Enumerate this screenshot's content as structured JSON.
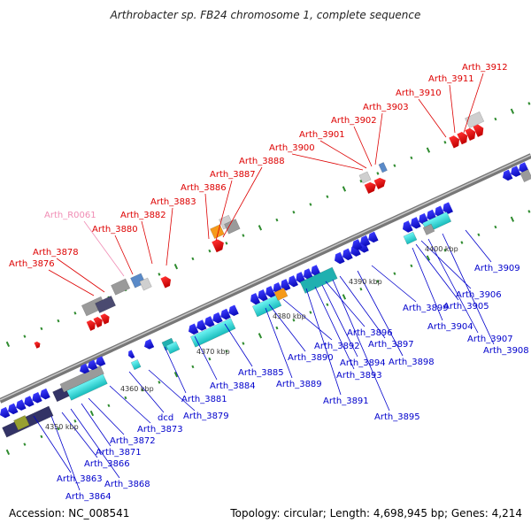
{
  "title": "Arthrobacter sp. FB24 chromosome 1, complete sequence",
  "footer": {
    "accession": "Accession: NC_008541",
    "summary": "Topology: circular; Length: 4,698,945 bp; Genes: 4,214"
  },
  "colors": {
    "backbone": "#8a8a8a",
    "tick": "#2e8b2e",
    "label_red": "#dd0000",
    "label_pink": "#f08cb4",
    "label_blue": "#0000cc",
    "gene_red": "#ee0000",
    "gene_blue": "#1a1ae6",
    "gene_cyan": "#22dddd",
    "gene_gray": "#999999",
    "gene_dark": "#555577",
    "gene_orange": "#f59a1a",
    "gene_olive": "#99a030"
  },
  "scale_labels": [
    "4350 kbp",
    "4360 kbp",
    "4370 kbp",
    "4380 kbp",
    "4390 kbp",
    "4400 kbp"
  ],
  "top_labels": [
    {
      "text": "Arth_3876",
      "color": "red"
    },
    {
      "text": "Arth_3878",
      "color": "red"
    },
    {
      "text": "Arth_R0061",
      "color": "pink"
    },
    {
      "text": "Arth_3880",
      "color": "red"
    },
    {
      "text": "Arth_3882",
      "color": "red"
    },
    {
      "text": "Arth_3883",
      "color": "red"
    },
    {
      "text": "Arth_3886",
      "color": "red"
    },
    {
      "text": "Arth_3887",
      "color": "red"
    },
    {
      "text": "Arth_3888",
      "color": "red"
    },
    {
      "text": "Arth_3900",
      "color": "red"
    },
    {
      "text": "Arth_3901",
      "color": "red"
    },
    {
      "text": "Arth_3902",
      "color": "red"
    },
    {
      "text": "Arth_3903",
      "color": "red"
    },
    {
      "text": "Arth_3910",
      "color": "red"
    },
    {
      "text": "Arth_3911",
      "color": "red"
    },
    {
      "text": "Arth_3912",
      "color": "red"
    }
  ],
  "bottom_labels": [
    "Arth_3863",
    "Arth_3864",
    "Arth_3866",
    "Arth_3868",
    "Arth_3871",
    "Arth_3872",
    "Arth_3873",
    "dcd",
    "Arth_3879",
    "Arth_3881",
    "Arth_3884",
    "Arth_3885",
    "Arth_3889",
    "Arth_3890",
    "Arth_3891",
    "Arth_3892",
    "Arth_3893",
    "Arth_3894",
    "Arth_3895",
    "Arth_3896",
    "Arth_3897",
    "Arth_3898",
    "Arth_3899",
    "Arth_3904",
    "Arth_3905",
    "Arth_3906",
    "Arth_3907",
    "Arth_3908",
    "Arth_3909"
  ]
}
